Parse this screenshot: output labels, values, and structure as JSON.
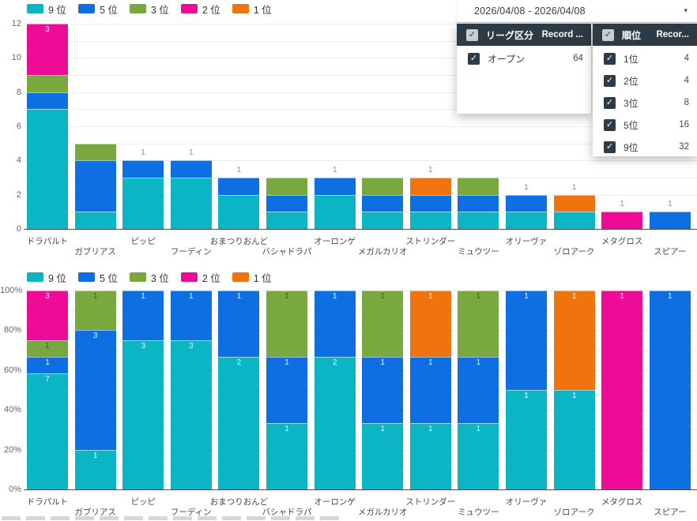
{
  "filters": {
    "checkmark": "✓",
    "date_range": {
      "value": "2026/04/08 - 2026/04/08",
      "caret": "▾"
    },
    "league_panel": {
      "title": "リーグ区分",
      "count_column": "Record ...",
      "rows": [
        {
          "label": "オープン",
          "count": "64"
        }
      ]
    },
    "rank_panel": {
      "title": "順位",
      "count_column": "Recor...",
      "rows": [
        {
          "label": "1位",
          "count": "4"
        },
        {
          "label": "2位",
          "count": "4"
        },
        {
          "label": "3位",
          "count": "8"
        },
        {
          "label": "5位",
          "count": "16"
        },
        {
          "label": "9位",
          "count": "32"
        }
      ]
    }
  },
  "ranks": [
    {
      "id": "rank-9",
      "legend_label": "9 位",
      "color": "#0cb5c4"
    },
    {
      "id": "rank-5",
      "legend_label": "5 位",
      "color": "#0d6fe2"
    },
    {
      "id": "rank-3",
      "legend_label": "3 位",
      "color": "#78a83e"
    },
    {
      "id": "rank-2",
      "legend_label": "2 位",
      "color": "#ee0b97"
    },
    {
      "id": "rank-1",
      "legend_label": "1 位",
      "color": "#f0740d"
    }
  ],
  "chart_data": [
    {
      "type": "bar",
      "stacking": "stacked-count",
      "title": "",
      "xlabel": "",
      "ylabel": "",
      "ylim": [
        0,
        12
      ],
      "ytick_labels": [
        "0",
        "2",
        "4",
        "6",
        "8",
        "10",
        "12"
      ],
      "grid": true,
      "legend_position": "top",
      "categories": [
        "ドラパルト",
        "ガブリアス",
        "ピッピ",
        "フーディン",
        "おまつりおんど",
        "バシャドラパ",
        "オーロンゲ",
        "メガルカリオ",
        "ストリンダー",
        "ミュウツー",
        "オリーヴァ",
        "ゾロアーク",
        "メタグロス",
        "スピアー"
      ],
      "series": [
        {
          "name": "9 位",
          "values": [
            7,
            1,
            3,
            3,
            2,
            1,
            2,
            1,
            1,
            1,
            1,
            1,
            0,
            0
          ]
        },
        {
          "name": "5 位",
          "values": [
            1,
            3,
            1,
            1,
            1,
            1,
            1,
            1,
            1,
            1,
            1,
            0,
            0,
            1
          ]
        },
        {
          "name": "3 位",
          "values": [
            1,
            1,
            0,
            0,
            0,
            1,
            0,
            1,
            0,
            1,
            0,
            0,
            0,
            0
          ]
        },
        {
          "name": "2 位",
          "values": [
            3,
            0,
            0,
            0,
            0,
            0,
            0,
            0,
            0,
            0,
            0,
            0,
            1,
            0
          ]
        },
        {
          "name": "1 位",
          "values": [
            0,
            0,
            0,
            0,
            0,
            0,
            0,
            0,
            1,
            0,
            0,
            1,
            0,
            0
          ]
        }
      ]
    },
    {
      "type": "bar",
      "stacking": "stacked-percent",
      "title": "",
      "xlabel": "",
      "ylabel": "",
      "ylim": [
        0,
        100
      ],
      "ytick_labels": [
        "0%",
        "20%",
        "40%",
        "60%",
        "80%",
        "100%"
      ],
      "grid": true,
      "legend_position": "top",
      "categories": [
        "ドラパルト",
        "ガブリアス",
        "ピッピ",
        "フーディン",
        "おまつりおんど",
        "バシャドラパ",
        "オーロンゲ",
        "メガルカリオ",
        "ストリンダー",
        "ミュウツー",
        "オリーヴァ",
        "ゾロアーク",
        "メタグロス",
        "スピアー"
      ],
      "series": [
        {
          "name": "9 位",
          "values": [
            7,
            1,
            3,
            3,
            2,
            1,
            2,
            1,
            1,
            1,
            1,
            1,
            0,
            0
          ]
        },
        {
          "name": "5 位",
          "values": [
            1,
            3,
            1,
            1,
            1,
            1,
            1,
            1,
            1,
            1,
            1,
            0,
            0,
            1
          ]
        },
        {
          "name": "3 位",
          "values": [
            1,
            1,
            0,
            0,
            0,
            1,
            0,
            1,
            0,
            1,
            0,
            0,
            0,
            0
          ]
        },
        {
          "name": "2 位",
          "values": [
            3,
            0,
            0,
            0,
            0,
            0,
            0,
            0,
            0,
            0,
            0,
            0,
            1,
            0
          ]
        },
        {
          "name": "1 位",
          "values": [
            0,
            0,
            0,
            0,
            0,
            0,
            0,
            0,
            1,
            0,
            0,
            1,
            0,
            0
          ]
        }
      ]
    }
  ]
}
